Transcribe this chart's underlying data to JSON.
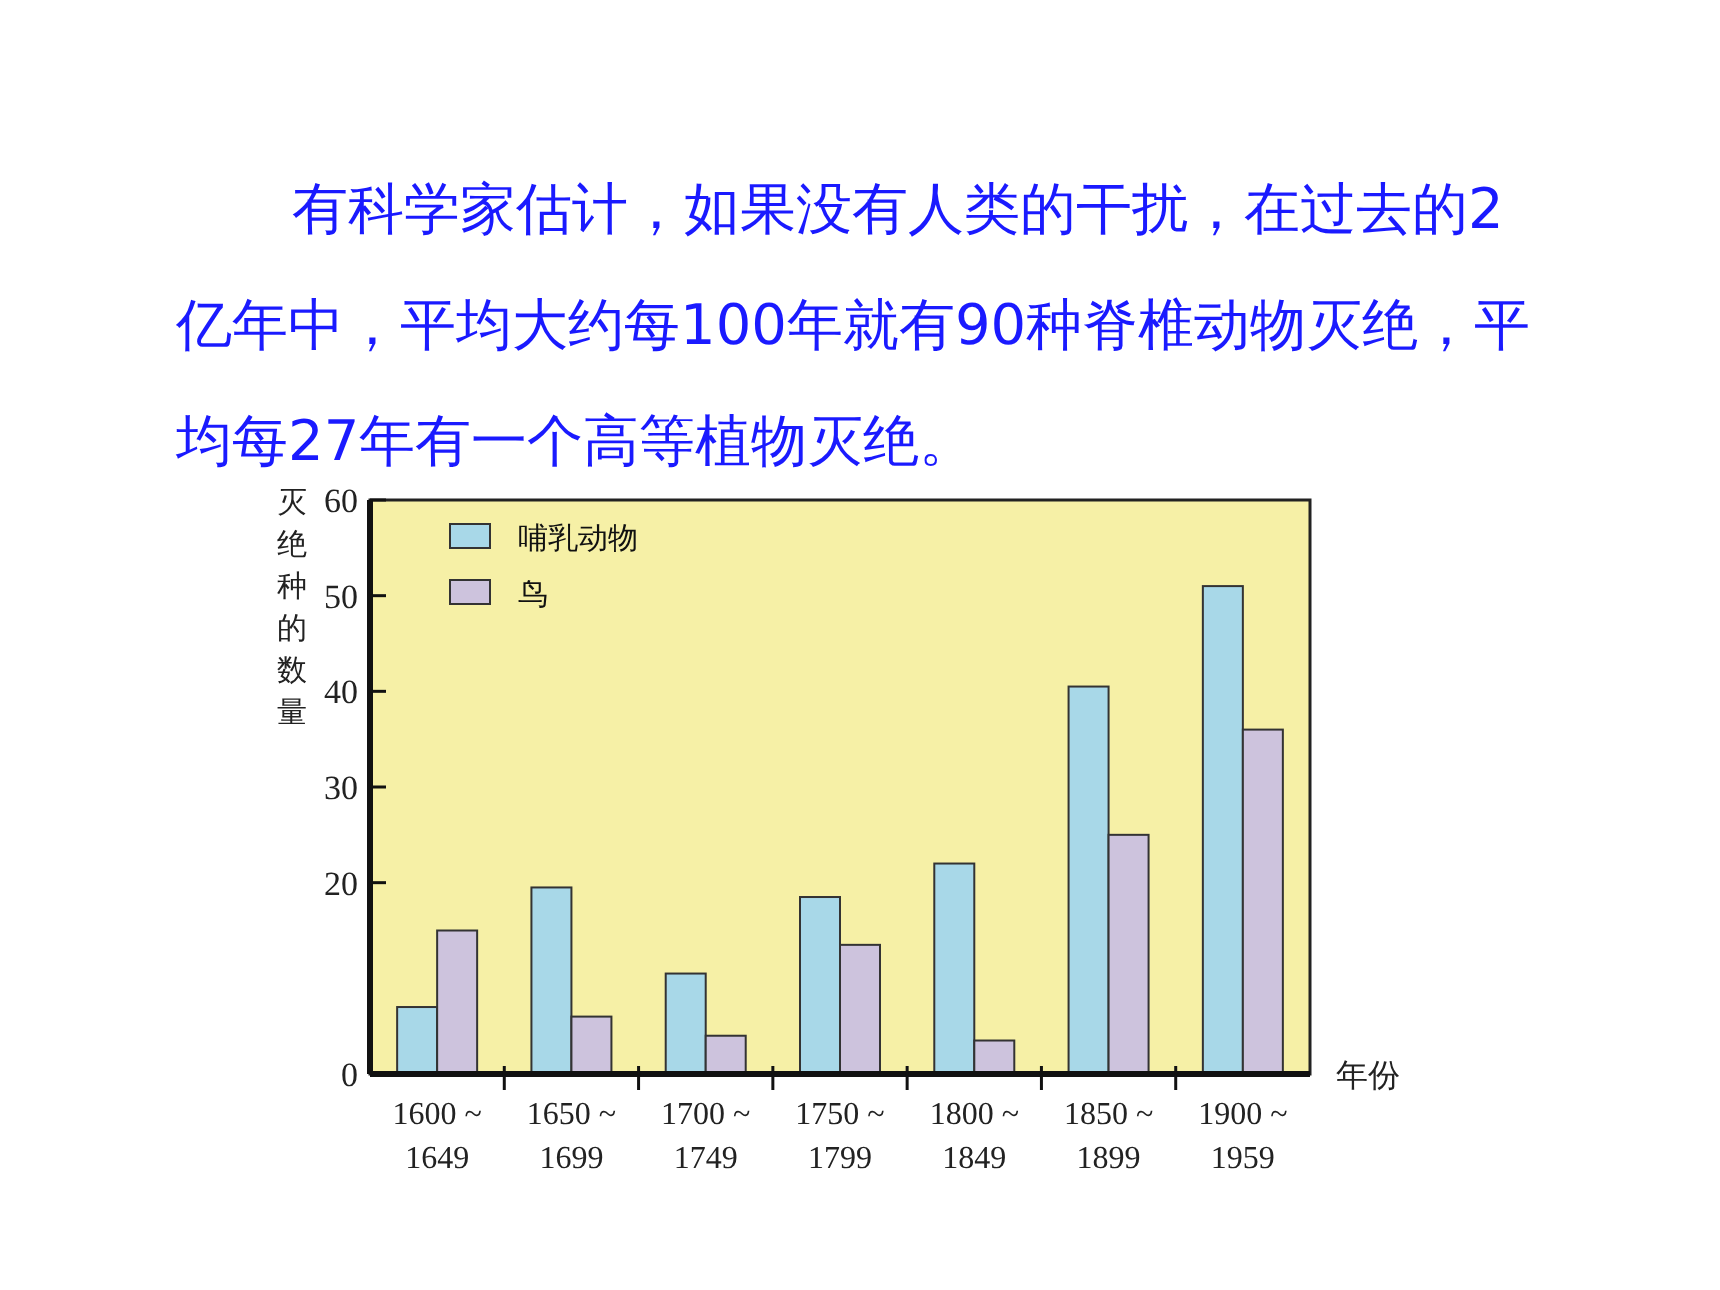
{
  "chart_data": {
    "type": "bar",
    "title": "有科学家估计，如果没有人类的干扰，在过去的2亿年中，平均大约每100年就有90种脊椎动物灭绝，平均每27年有一个高等植物灭绝。",
    "xlabel": "年份",
    "ylabel": "灭绝种的数量",
    "categories": [
      "1600 ~ 1649",
      "1650 ~ 1699",
      "1700 ~ 1749",
      "1750 ~ 1799",
      "1800 ~ 1849",
      "1850 ~ 1899",
      "1900 ~ 1959"
    ],
    "series": [
      {
        "name": "哺乳动物",
        "color": "#a8d8e8",
        "values": [
          7,
          19.5,
          10.5,
          18.5,
          22,
          40.5,
          51
        ]
      },
      {
        "name": "鸟",
        "color": "#cdc3dd",
        "values": [
          15,
          6,
          4,
          13.5,
          3.5,
          25,
          36
        ]
      }
    ],
    "ylim": [
      0,
      60
    ],
    "yticks": [
      0,
      20,
      30,
      40,
      50,
      60
    ],
    "legend": "top left"
  }
}
